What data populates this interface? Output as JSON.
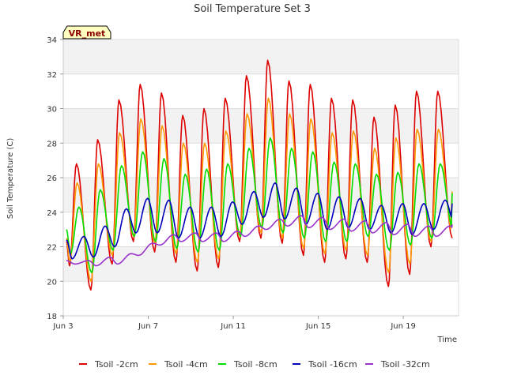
{
  "chart_data": {
    "type": "line",
    "title": "Soil Temperature Set 3",
    "xlabel": "Time",
    "ylabel": "Soil Temperature (C)",
    "badge": "VR_met",
    "xlim": [
      3,
      21.6
    ],
    "ylim": [
      18,
      34
    ],
    "x_ticks": [
      {
        "value": 3,
        "label": "Jun 3"
      },
      {
        "value": 7,
        "label": "Jun 7"
      },
      {
        "value": 11,
        "label": "Jun 11"
      },
      {
        "value": 15,
        "label": "Jun 15"
      },
      {
        "value": 19,
        "label": "Jun 19"
      }
    ],
    "y_ticks": [
      18,
      20,
      22,
      24,
      26,
      28,
      30,
      32,
      34
    ],
    "grid": "horizontal bands",
    "legend_position": "bottom",
    "days": [
      3.3,
      4.3,
      5.3,
      6.3,
      7.3,
      8.3,
      9.3,
      10.3,
      11.3,
      12.3,
      13.3,
      14.3,
      15.3,
      16.3,
      17.3,
      18.3,
      19.3,
      20.3,
      21.3
    ],
    "series": [
      {
        "name": "Tsoil -2cm",
        "color": "#dd0000",
        "start": 22.3,
        "end": 24.9,
        "peak_phase": 0.62,
        "lag": 0.0,
        "maxs": [
          26.8,
          28.2,
          30.5,
          31.4,
          30.9,
          29.6,
          30.0,
          30.6,
          31.9,
          32.8,
          31.6,
          31.4,
          30.6,
          30.5,
          29.5,
          30.2,
          31.0,
          31.0
        ],
        "mins": [
          20.9,
          19.5,
          21.0,
          22.3,
          21.7,
          21.1,
          20.6,
          20.8,
          22.3,
          22.5,
          22.2,
          21.5,
          21.1,
          21.3,
          21.1,
          19.7,
          20.4,
          22.0,
          22.5
        ]
      },
      {
        "name": "Tsoil -4cm",
        "color": "#ff9900",
        "start": 22.5,
        "end": 25.2,
        "peak_phase": 0.64,
        "lag": 0.01,
        "maxs": [
          25.7,
          26.8,
          28.6,
          29.4,
          29.0,
          28.0,
          28.0,
          28.7,
          29.7,
          30.6,
          29.7,
          29.4,
          28.6,
          28.7,
          27.7,
          28.3,
          28.8,
          28.8
        ],
        "mins": [
          21.1,
          20.0,
          21.5,
          22.6,
          22.2,
          21.6,
          21.1,
          21.3,
          22.6,
          22.8,
          22.5,
          21.9,
          21.6,
          21.8,
          21.5,
          20.5,
          21.0,
          22.3,
          22.8
        ]
      },
      {
        "name": "Tsoil -8cm",
        "color": "#00dd00",
        "start": 23.0,
        "end": 25.1,
        "peak_phase": 0.7,
        "lag": 0.04,
        "maxs": [
          24.3,
          25.3,
          26.7,
          27.5,
          27.1,
          26.2,
          26.5,
          26.8,
          27.7,
          28.3,
          27.7,
          27.5,
          26.9,
          26.8,
          26.2,
          26.3,
          26.8,
          26.8
        ],
        "mins": [
          21.6,
          20.5,
          21.8,
          22.6,
          22.3,
          21.9,
          21.7,
          21.8,
          22.6,
          23.1,
          22.8,
          22.5,
          22.3,
          22.3,
          22.6,
          21.8,
          22.1,
          22.5,
          23.0
        ]
      },
      {
        "name": "Tsoil -16cm",
        "color": "#0000bb",
        "start": 22.4,
        "end": 24.5,
        "peak_phase": 0.85,
        "lag": 0.12,
        "maxs": [
          22.6,
          23.2,
          24.2,
          24.8,
          24.7,
          24.3,
          24.3,
          24.6,
          25.2,
          25.7,
          25.4,
          25.1,
          24.9,
          24.8,
          24.4,
          24.5,
          24.5,
          24.7
        ],
        "mins": [
          21.3,
          21.4,
          22.0,
          22.8,
          22.8,
          22.5,
          22.5,
          22.6,
          23.3,
          23.7,
          23.6,
          23.3,
          23.0,
          23.1,
          23.0,
          22.8,
          22.7,
          23.0,
          23.3
        ]
      },
      {
        "name": "Tsoil -32cm",
        "color": "#9933cc",
        "start": 21.2,
        "end": 23.3,
        "peak_phase": 0.95,
        "lag": 0.25,
        "maxs": [
          21.2,
          21.4,
          21.6,
          22.2,
          22.7,
          22.8,
          22.8,
          22.9,
          23.2,
          23.6,
          23.8,
          23.7,
          23.6,
          23.5,
          23.4,
          23.3,
          23.2,
          23.2
        ],
        "mins": [
          21.0,
          20.9,
          21.0,
          21.5,
          22.1,
          22.3,
          22.3,
          22.3,
          22.6,
          23.0,
          23.2,
          23.1,
          23.0,
          22.9,
          22.8,
          22.7,
          22.6,
          22.6,
          22.7
        ]
      }
    ]
  }
}
